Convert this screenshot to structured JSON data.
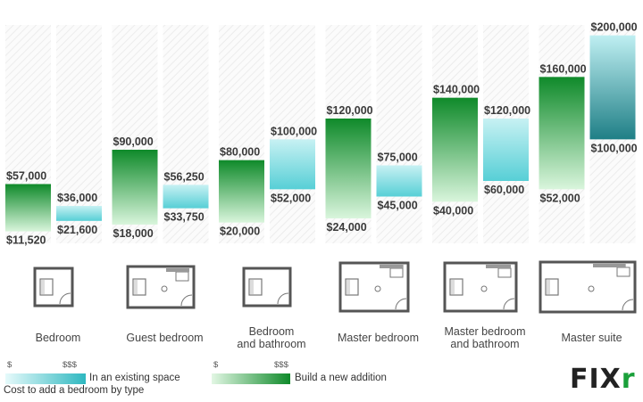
{
  "chart_data": {
    "type": "bar",
    "title": "",
    "note": "Cost to add a bedroom by type",
    "categories": [
      "Bedroom",
      "Guest bedroom",
      "Bedroom and bathroom",
      "Master bedroom",
      "Master bedroom and bathroom",
      "Master suite"
    ],
    "category_lines": [
      [
        "Bedroom"
      ],
      [
        "Guest bedroom"
      ],
      [
        "Bedroom",
        "and bathroom"
      ],
      [
        "Master bedroom"
      ],
      [
        "Master bedroom",
        "and bathroom"
      ],
      [
        "Master suite"
      ]
    ],
    "series": [
      {
        "name": "Build a new addition",
        "color": "#1aa83a",
        "low": [
          11520,
          18000,
          20000,
          24000,
          40000,
          52000
        ],
        "high": [
          57000,
          90000,
          80000,
          120000,
          140000,
          160000
        ],
        "low_labels": [
          "$11,520",
          "$18,000",
          "$20,000",
          "$24,000",
          "$40,000",
          "$52,000"
        ],
        "high_labels": [
          "$57,000",
          "$90,000",
          "$80,000",
          "$120,000",
          "$140,000",
          "$160,000"
        ]
      },
      {
        "name": "In an existing space",
        "color": "#5fd6db",
        "low": [
          21600,
          33750,
          52000,
          45000,
          60000,
          100000
        ],
        "high": [
          36000,
          56250,
          100000,
          75000,
          120000,
          200000
        ],
        "low_labels": [
          "$21,600",
          "$33,750",
          "$52,000",
          "$45,000",
          "$60,000",
          "$100,000"
        ],
        "high_labels": [
          "$36,000",
          "$56,250",
          "$100,000",
          "$75,000",
          "$120,000",
          "$200,000"
        ]
      }
    ],
    "ylim": [
      0,
      210000
    ],
    "legend": {
      "ramp_low": "$",
      "ramp_high": "$$$",
      "existing_label": "In an existing space",
      "addition_label": "Build a new addition"
    }
  },
  "brand": {
    "logo_main": "FIX",
    "logo_accent": "r"
  },
  "colors": {
    "addition_dark": "#0f8a2a",
    "addition_light": "#d9f5dc",
    "existing_dark": "#1f7f86",
    "existing_light": "#bfeff2"
  }
}
